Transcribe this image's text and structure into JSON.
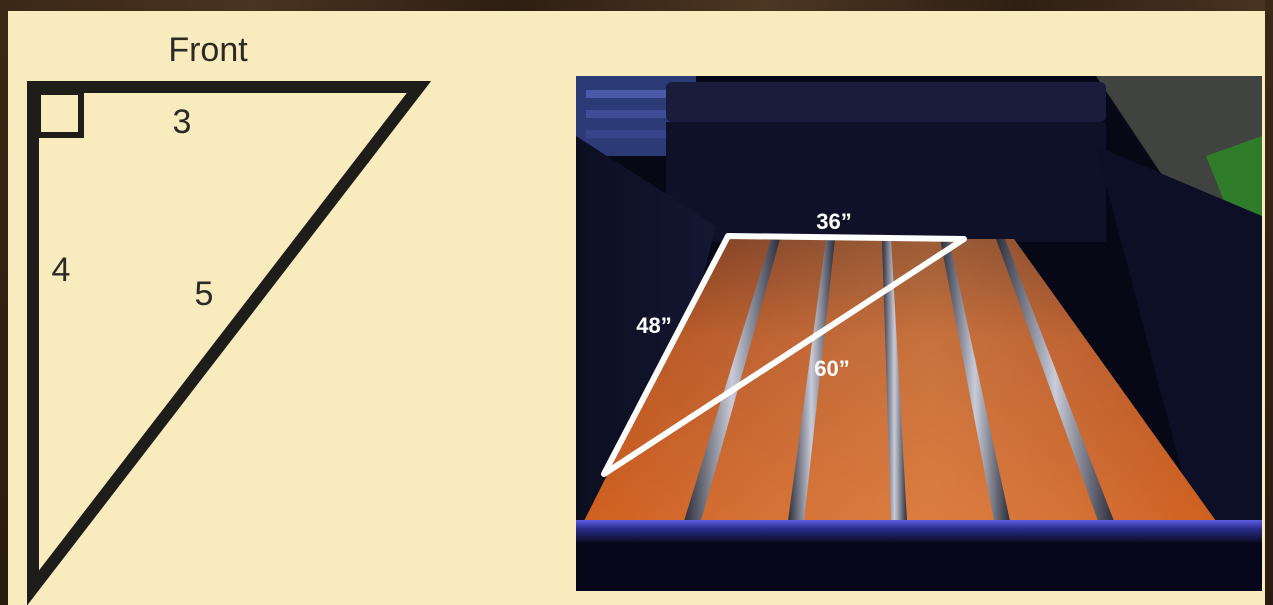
{
  "diagram": {
    "front_label": "Front",
    "side_top": "3",
    "side_left": "4",
    "side_hyp": "5"
  },
  "photo": {
    "top_measure": "36”",
    "left_measure": "48”",
    "diagonal_measure": "60”"
  },
  "colors": {
    "panel": "#f8ebbd",
    "outline": "#1e1d19",
    "wood_plank": "#c4551c",
    "chrome_strip": "#8a8ea0",
    "truck_blue": "#2a2d8c"
  }
}
